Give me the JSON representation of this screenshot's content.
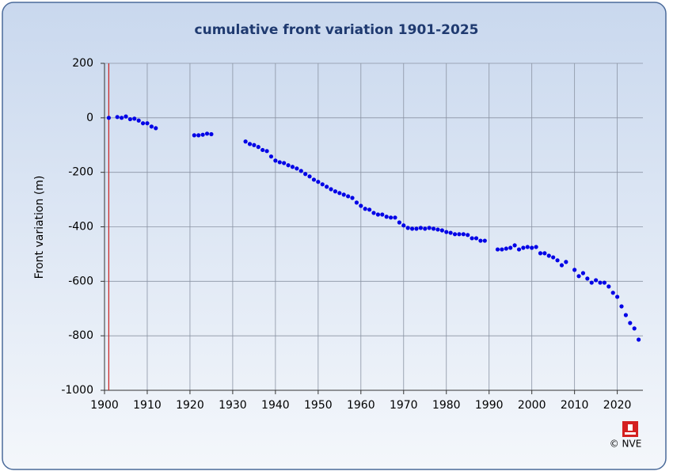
{
  "chart_data": {
    "type": "scatter",
    "title": "cumulative front variation 1901-2025",
    "y_label": "Front variation (m)",
    "credit": "© NVE",
    "color": "#0000e6",
    "reference_line_x": 1901,
    "reference_line_color": "#cc2222",
    "grid": true,
    "xlim": [
      1900,
      2026
    ],
    "xticks": [
      1900,
      1910,
      1920,
      1930,
      1940,
      1950,
      1960,
      1970,
      1980,
      1990,
      2000,
      2010,
      2020
    ],
    "ylim": [
      -1000,
      200
    ],
    "yticks": [
      200,
      0,
      -200,
      -400,
      -600,
      -800,
      -1000
    ],
    "x": [
      1901,
      1903,
      1904,
      1905,
      1906,
      1907,
      1908,
      1909,
      1910,
      1911,
      1912,
      1921,
      1922,
      1923,
      1924,
      1925,
      1933,
      1934,
      1935,
      1936,
      1937,
      1938,
      1939,
      1940,
      1941,
      1942,
      1943,
      1944,
      1945,
      1946,
      1947,
      1948,
      1949,
      1950,
      1951,
      1952,
      1953,
      1954,
      1955,
      1956,
      1957,
      1958,
      1959,
      1960,
      1961,
      1962,
      1963,
      1964,
      1965,
      1966,
      1967,
      1968,
      1969,
      1970,
      1971,
      1972,
      1973,
      1974,
      1975,
      1976,
      1977,
      1978,
      1979,
      1980,
      1981,
      1982,
      1983,
      1984,
      1985,
      1986,
      1987,
      1988,
      1989,
      1992,
      1993,
      1994,
      1995,
      1996,
      1997,
      1998,
      1999,
      2000,
      2001,
      2002,
      2003,
      2004,
      2005,
      2006,
      2007,
      2008,
      2010,
      2011,
      2012,
      2013,
      2014,
      2015,
      2016,
      2017,
      2018,
      2019,
      2020,
      2021,
      2022,
      2023,
      2024,
      2025
    ],
    "values": [
      0,
      3,
      0,
      5,
      -5,
      -3,
      -10,
      -20,
      -20,
      -32,
      -38,
      -64,
      -64,
      -62,
      -58,
      -60,
      -87,
      -96,
      -100,
      -107,
      -118,
      -122,
      -142,
      -157,
      -163,
      -166,
      -174,
      -180,
      -186,
      -195,
      -206,
      -215,
      -227,
      -235,
      -244,
      -253,
      -262,
      -270,
      -276,
      -282,
      -288,
      -294,
      -311,
      -323,
      -334,
      -337,
      -349,
      -355,
      -355,
      -363,
      -366,
      -366,
      -384,
      -395,
      -404,
      -407,
      -407,
      -404,
      -407,
      -404,
      -407,
      -410,
      -413,
      -419,
      -422,
      -427,
      -427,
      -427,
      -430,
      -442,
      -442,
      -451,
      -451,
      -483,
      -483,
      -480,
      -477,
      -468,
      -483,
      -477,
      -474,
      -477,
      -474,
      -497,
      -497,
      -506,
      -512,
      -523,
      -541,
      -529,
      -558,
      -581,
      -570,
      -590,
      -605,
      -596,
      -605,
      -605,
      -619,
      -642,
      -657,
      -692,
      -724,
      -753,
      -773,
      -814
    ]
  }
}
